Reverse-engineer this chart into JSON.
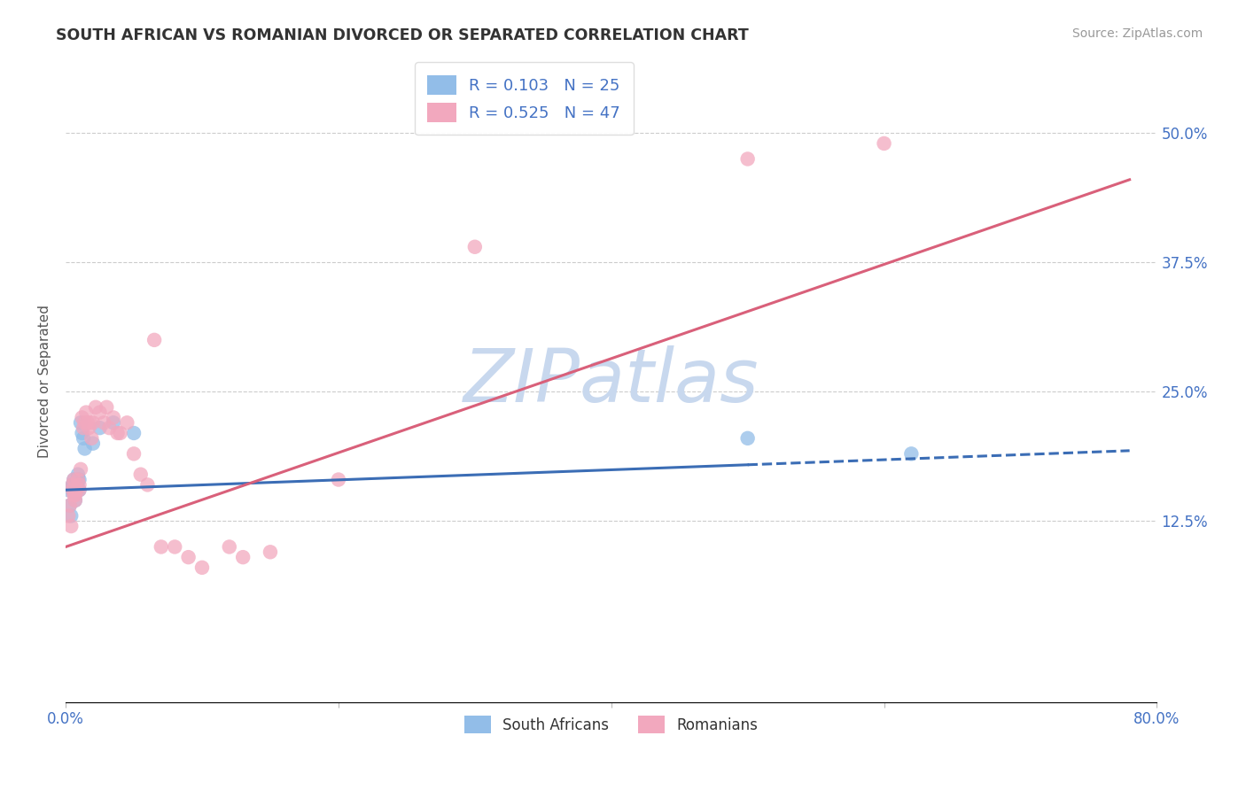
{
  "title": "SOUTH AFRICAN VS ROMANIAN DIVORCED OR SEPARATED CORRELATION CHART",
  "source": "Source: ZipAtlas.com",
  "ylabel": "Divorced or Separated",
  "xlim": [
    0.0,
    0.8
  ],
  "ylim": [
    -0.05,
    0.57
  ],
  "R_blue": 0.103,
  "N_blue": 25,
  "R_pink": 0.525,
  "N_pink": 47,
  "blue_color": "#92BDE8",
  "pink_color": "#F2A8BE",
  "blue_line_color": "#3B6DB5",
  "pink_line_color": "#D9607A",
  "watermark_text": "ZIPatlas",
  "watermark_color": "#C8D8EE",
  "blue_scatter_x": [
    0.002,
    0.003,
    0.004,
    0.005,
    0.005,
    0.006,
    0.006,
    0.007,
    0.007,
    0.008,
    0.008,
    0.009,
    0.009,
    0.01,
    0.01,
    0.011,
    0.012,
    0.013,
    0.014,
    0.02,
    0.025,
    0.035,
    0.05,
    0.5,
    0.62
  ],
  "blue_scatter_y": [
    0.155,
    0.14,
    0.13,
    0.155,
    0.16,
    0.165,
    0.16,
    0.145,
    0.155,
    0.155,
    0.16,
    0.165,
    0.17,
    0.155,
    0.165,
    0.22,
    0.21,
    0.205,
    0.195,
    0.2,
    0.215,
    0.22,
    0.21,
    0.205,
    0.19
  ],
  "pink_scatter_x": [
    0.002,
    0.003,
    0.004,
    0.005,
    0.005,
    0.006,
    0.006,
    0.007,
    0.007,
    0.008,
    0.009,
    0.01,
    0.01,
    0.011,
    0.012,
    0.013,
    0.014,
    0.015,
    0.016,
    0.017,
    0.018,
    0.019,
    0.02,
    0.022,
    0.025,
    0.028,
    0.03,
    0.032,
    0.035,
    0.038,
    0.04,
    0.045,
    0.05,
    0.055,
    0.06,
    0.065,
    0.07,
    0.08,
    0.09,
    0.1,
    0.12,
    0.13,
    0.15,
    0.2,
    0.3,
    0.5,
    0.6
  ],
  "pink_scatter_y": [
    0.13,
    0.14,
    0.12,
    0.155,
    0.16,
    0.15,
    0.165,
    0.15,
    0.145,
    0.155,
    0.165,
    0.155,
    0.16,
    0.175,
    0.225,
    0.215,
    0.22,
    0.23,
    0.22,
    0.215,
    0.22,
    0.205,
    0.22,
    0.235,
    0.23,
    0.22,
    0.235,
    0.215,
    0.225,
    0.21,
    0.21,
    0.22,
    0.19,
    0.17,
    0.16,
    0.3,
    0.1,
    0.1,
    0.09,
    0.08,
    0.1,
    0.09,
    0.095,
    0.165,
    0.39,
    0.475,
    0.49
  ],
  "blue_line_x_start": 0.0,
  "blue_line_x_solid_end": 0.5,
  "blue_line_x_dashed_end": 0.78,
  "blue_line_y_at_0": 0.155,
  "blue_line_y_at_end": 0.193,
  "pink_line_x_start": 0.0,
  "pink_line_x_end": 0.78,
  "pink_line_y_at_0": 0.1,
  "pink_line_y_at_end": 0.455
}
